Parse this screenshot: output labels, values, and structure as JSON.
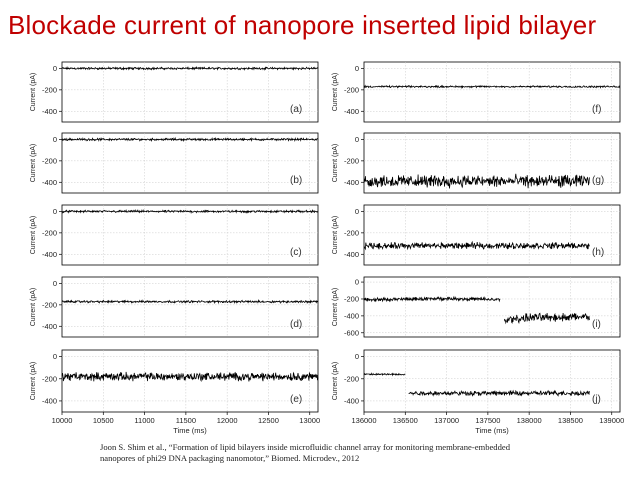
{
  "slide": {
    "title": "Blockade current of nanopore inserted lipid bilayer",
    "citation_line1": "Joon S. Shim et al., “Formation of lipid bilayers inside microfluidic channel array for monitoring membrane-embedded",
    "citation_line2": "nanopores of phi29 DNA packaging nanomotor,” Biomed. Microdev., 2012"
  },
  "colors": {
    "title": "#c00000",
    "trace": "#000000",
    "grid": "#c8c8c8",
    "axis": "#000000"
  },
  "chart_data": [
    {
      "type": "line",
      "panel": "(a)",
      "xlabel": "",
      "ylabel": "Current (pA)",
      "xlim": [
        10000,
        13100
      ],
      "ylim": [
        -500,
        60
      ],
      "yticks": [
        "0",
        "-200",
        "-400"
      ],
      "xticks": [],
      "grid": true,
      "series": [
        {
          "x": [
            10000,
            13100
          ],
          "y": [
            0,
            0
          ],
          "noise": 12
        }
      ]
    },
    {
      "type": "line",
      "panel": "(b)",
      "xlabel": "",
      "ylabel": "Current (pA)",
      "xlim": [
        10000,
        13100
      ],
      "ylim": [
        -500,
        60
      ],
      "yticks": [
        "0",
        "-200",
        "-400"
      ],
      "xticks": [],
      "grid": true,
      "series": [
        {
          "x": [
            10000,
            13100
          ],
          "y": [
            0,
            0
          ],
          "noise": 12
        }
      ]
    },
    {
      "type": "line",
      "panel": "(c)",
      "xlabel": "",
      "ylabel": "Current (pA)",
      "xlim": [
        10000,
        13100
      ],
      "ylim": [
        -500,
        60
      ],
      "yticks": [
        "0",
        "-200",
        "-400"
      ],
      "xticks": [],
      "grid": true,
      "series": [
        {
          "x": [
            10000,
            13100
          ],
          "y": [
            0,
            0
          ],
          "noise": 12
        }
      ]
    },
    {
      "type": "line",
      "panel": "(d)",
      "xlabel": "",
      "ylabel": "Current (pA)",
      "xlim": [
        10000,
        13100
      ],
      "ylim": [
        -500,
        60
      ],
      "yticks": [
        "0",
        "-200",
        "-400"
      ],
      "xticks": [],
      "grid": true,
      "series": [
        {
          "x": [
            10000,
            13100
          ],
          "y": [
            -170,
            -170
          ],
          "noise": 12
        }
      ]
    },
    {
      "type": "line",
      "panel": "(e)",
      "xlabel": "Time (ms)",
      "ylabel": "Current (pA)",
      "xlim": [
        10000,
        13100
      ],
      "ylim": [
        -500,
        60
      ],
      "yticks": [
        "0",
        "-200",
        "-400"
      ],
      "xticks": [
        "10000",
        "10500",
        "11000",
        "11500",
        "12000",
        "12500",
        "13000"
      ],
      "grid": true,
      "series": [
        {
          "x": [
            10000,
            13100
          ],
          "y": [
            -180,
            -180
          ],
          "noise": 45
        }
      ]
    },
    {
      "type": "line",
      "panel": "(f)",
      "xlabel": "",
      "ylabel": "Current (pA)",
      "xlim": [
        136000,
        139100
      ],
      "ylim": [
        -500,
        60
      ],
      "yticks": [
        "0",
        "-200",
        "-400"
      ],
      "xticks": [],
      "grid": true,
      "series": [
        {
          "x": [
            136000,
            139100
          ],
          "y": [
            -170,
            -170
          ],
          "noise": 10
        }
      ]
    },
    {
      "type": "line",
      "panel": "(g)",
      "xlabel": "",
      "ylabel": "Current (pA)",
      "xlim": [
        136000,
        139100
      ],
      "ylim": [
        -500,
        60
      ],
      "yticks": [
        "0",
        "-200",
        "-400"
      ],
      "xticks": [],
      "grid": true,
      "series": [
        {
          "x": [
            136000,
            138730
          ],
          "y": [
            -390,
            -390
          ],
          "noise": 70
        }
      ]
    },
    {
      "type": "line",
      "panel": "(h)",
      "xlabel": "",
      "ylabel": "Current (pA)",
      "xlim": [
        136000,
        139100
      ],
      "ylim": [
        -500,
        60
      ],
      "yticks": [
        "0",
        "-200",
        "-400"
      ],
      "xticks": [],
      "grid": true,
      "series": [
        {
          "x": [
            136000,
            138730
          ],
          "y": [
            -320,
            -320
          ],
          "noise": 35
        }
      ]
    },
    {
      "type": "line",
      "panel": "(i)",
      "xlabel": "",
      "ylabel": "Current (pA)",
      "xlim": [
        136000,
        139100
      ],
      "ylim": [
        -650,
        60
      ],
      "yticks": [
        "0",
        "-200",
        "-400",
        "-600"
      ],
      "xticks": [],
      "grid": true,
      "series": [
        {
          "x": [
            136000,
            137000,
            137500,
            137650
          ],
          "y": [
            -210,
            -195,
            -205,
            -210
          ],
          "noise": 25
        },
        {
          "x": [
            137700,
            138000,
            138730
          ],
          "y": [
            -450,
            -420,
            -410
          ],
          "noise": 60
        }
      ]
    },
    {
      "type": "line",
      "panel": "(j)",
      "xlabel": "Time (ms)",
      "ylabel": "Current (pA)",
      "xlim": [
        136000,
        139100
      ],
      "ylim": [
        -500,
        60
      ],
      "yticks": [
        "0",
        "-200",
        "-400"
      ],
      "xticks": [
        "136000",
        "136500",
        "137000",
        "137500",
        "138000",
        "138500",
        "139000"
      ],
      "grid": true,
      "series": [
        {
          "x": [
            136000,
            136500
          ],
          "y": [
            -160,
            -160
          ],
          "noise": 10
        },
        {
          "x": [
            136540,
            138730
          ],
          "y": [
            -330,
            -330
          ],
          "noise": 25
        }
      ]
    }
  ]
}
